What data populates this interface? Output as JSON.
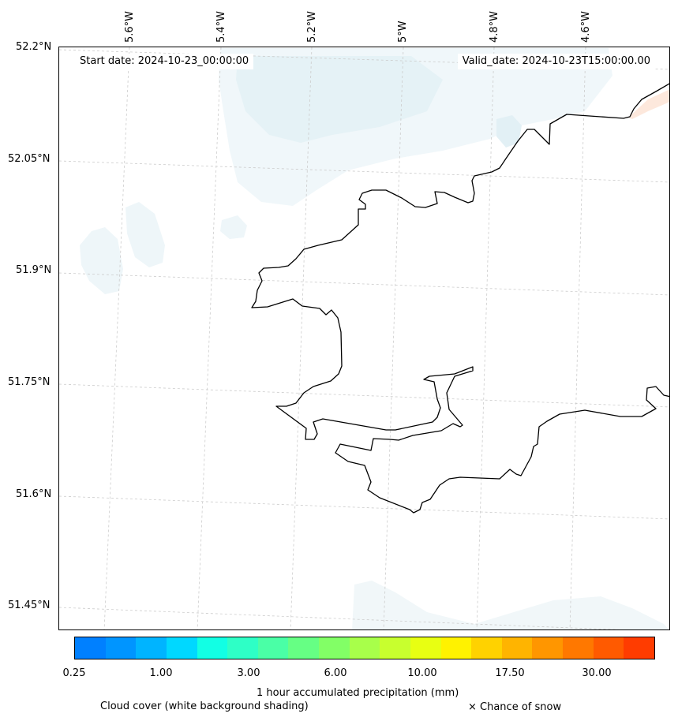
{
  "map": {
    "start_date": "Start date: 2024-10-23_00:00:00",
    "valid_date": "Valid_date: 2024-10-23T15:00:00.00",
    "lon_labels": [
      "5.6°W",
      "5.4°W",
      "5.2°W",
      "5°W",
      "4.8°W",
      "4.6°W"
    ],
    "lat_labels": [
      "52.2°N",
      "52.05°N",
      "51.9°N",
      "51.75°N",
      "51.6°N",
      "51.45°N"
    ],
    "coastline_color": "#000000",
    "grid_color": "#cccccc",
    "grid": "on (dashed)"
  },
  "colorbar": {
    "title": "1 hour accumulated precipitation (mm)",
    "tick_labels": [
      "0.25",
      "1.00",
      "3.00",
      "6.00",
      "10.00",
      "17.50",
      "30.00"
    ],
    "colors": [
      "#0080ff",
      "#0095ff",
      "#00b4ff",
      "#00d8ff",
      "#12ffe4",
      "#2effc6",
      "#4affa6",
      "#66ff84",
      "#82ff66",
      "#a8ff4a",
      "#c8ff2e",
      "#e8ff12",
      "#fff200",
      "#ffd200",
      "#ffb400",
      "#ff9600",
      "#ff7800",
      "#ff5a00",
      "#ff3c00"
    ]
  },
  "legend": {
    "cloud_cover": "Cloud cover (white background shading)",
    "snow": "× Chance of snow"
  }
}
